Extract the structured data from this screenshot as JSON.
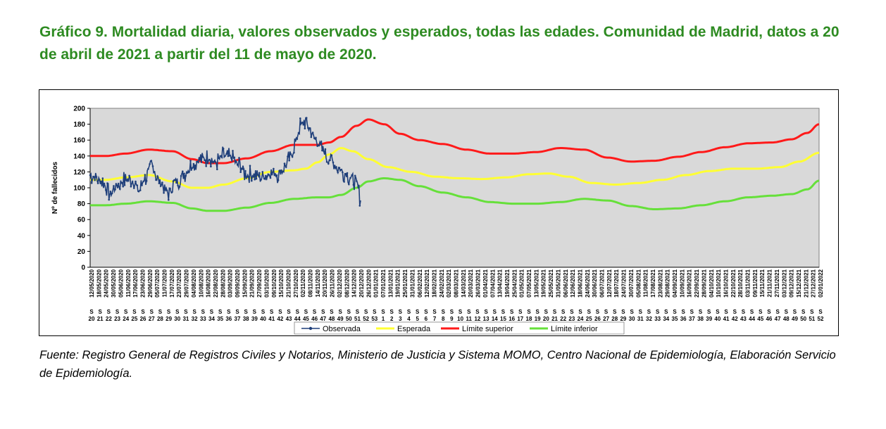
{
  "title": "Gráfico 9. Mortalidad diaria, valores observados y esperados, todas las edades. Comunidad de Madrid, datos a 20 de abril de 2021 a partir del 11 de mayo de 2020.",
  "source": "Fuente: Registro General de Registros Civiles y Notarios, Ministerio de Justicia y Sistema MOMO, Centro Nacional de Epidemiología, Elaboración Servicio de Epidemiología.",
  "colors": {
    "observada": "#1f3f7a",
    "esperada": "#ffff33",
    "limite_superior": "#ff1a1a",
    "limite_inferior": "#66e03a",
    "plot_bg": "#d9d9d9"
  },
  "chart_data": {
    "type": "line",
    "title": "",
    "ylabel": "Nº de fallecidos",
    "xlabel": "",
    "ylim": [
      0,
      200
    ],
    "yticks": [
      0,
      20,
      40,
      60,
      80,
      100,
      120,
      140,
      160,
      180,
      200
    ],
    "x_start": "11/05/2020",
    "total_days": 600,
    "observed_days": 345,
    "date_labels": [
      "12/05/2020",
      "18/05/2020",
      "24/05/2020",
      "30/05/2020",
      "05/06/2020",
      "11/06/2020",
      "17/06/2020",
      "23/06/2020",
      "29/06/2020",
      "05/07/2020",
      "11/07/2020",
      "17/07/2020",
      "23/07/2020",
      "29/07/2020",
      "04/08/2020",
      "10/08/2020",
      "16/08/2020",
      "22/08/2020",
      "28/08/2020",
      "03/09/2020",
      "09/09/2020",
      "15/09/2020",
      "21/09/2020",
      "27/09/2020",
      "03/10/2020",
      "09/10/2020",
      "15/10/2020",
      "21/10/2020",
      "27/10/2020",
      "02/11/2020",
      "08/11/2020",
      "14/11/2020",
      "20/11/2020",
      "26/11/2020",
      "02/12/2020",
      "08/12/2020",
      "14/12/2020",
      "20/12/2020",
      "26/12/2020",
      "01/01/2021",
      "07/01/2021",
      "13/01/2021",
      "19/01/2021",
      "25/01/2021",
      "31/01/2021",
      "06/02/2021",
      "12/02/2021",
      "18/02/2021",
      "24/02/2021",
      "02/03/2021",
      "08/03/2021",
      "14/03/2021",
      "20/03/2021",
      "26/03/2021",
      "01/04/2021",
      "07/04/2021",
      "13/04/2021",
      "19/04/2021",
      "25/04/2021",
      "01/05/2021",
      "07/05/2021",
      "13/05/2021",
      "19/05/2021",
      "25/05/2021",
      "31/05/2021",
      "06/06/2021",
      "12/06/2021",
      "18/06/2021",
      "24/06/2021",
      "30/06/2021",
      "06/07/2021",
      "12/07/2021",
      "18/07/2021",
      "24/07/2021",
      "30/07/2021",
      "05/08/2021",
      "11/08/2021",
      "17/08/2021",
      "23/08/2021",
      "29/08/2021",
      "04/09/2021",
      "10/09/2021",
      "16/09/2021",
      "22/09/2021",
      "28/09/2021",
      "04/10/2021",
      "10/10/2021",
      "16/10/2021",
      "22/10/2021",
      "28/10/2021",
      "03/11/2021",
      "09/11/2021",
      "15/11/2021",
      "21/11/2021",
      "27/11/2021",
      "03/12/2021",
      "09/12/2021",
      "15/12/2021",
      "21/12/2021",
      "27/12/2021",
      "02/01/2022"
    ],
    "week_prefix": "S",
    "week_labels": [
      "20",
      "21",
      "22",
      "23",
      "24",
      "25",
      "26",
      "27",
      "28",
      "29",
      "30",
      "31",
      "32",
      "33",
      "34",
      "35",
      "36",
      "37",
      "38",
      "39",
      "40",
      "41",
      "42",
      "43",
      "44",
      "45",
      "46",
      "47",
      "48",
      "49",
      "50",
      "51",
      "52",
      "53",
      "1",
      "2",
      "3",
      "4",
      "5",
      "6",
      "7",
      "8",
      "9",
      "10",
      "11",
      "12",
      "13",
      "14",
      "15",
      "16",
      "17",
      "18",
      "19",
      "20",
      "21",
      "22",
      "23",
      "24",
      "25",
      "26",
      "27",
      "28",
      "29",
      "30",
      "31",
      "32",
      "33",
      "34",
      "35",
      "36",
      "37",
      "38",
      "39",
      "40",
      "41",
      "42",
      "43",
      "44",
      "45",
      "46",
      "47",
      "48",
      "49",
      "50",
      "51",
      "52"
    ],
    "series": [
      {
        "name": "Observada",
        "key": "observada",
        "base": [
          [
            0,
            116
          ],
          [
            15,
            108
          ],
          [
            25,
            92
          ],
          [
            35,
            104
          ],
          [
            45,
            110
          ],
          [
            55,
            108
          ],
          [
            62,
            96
          ],
          [
            70,
            112
          ],
          [
            78,
            128
          ],
          [
            88,
            108
          ],
          [
            100,
            94
          ],
          [
            110,
            108
          ],
          [
            120,
            118
          ],
          [
            130,
            128
          ],
          [
            140,
            136
          ],
          [
            150,
            138
          ],
          [
            160,
            132
          ],
          [
            170,
            140
          ],
          [
            180,
            138
          ],
          [
            190,
            128
          ],
          [
            200,
            116
          ],
          [
            210,
            116
          ],
          [
            220,
            114
          ],
          [
            230,
            118
          ],
          [
            240,
            118
          ],
          [
            250,
            128
          ],
          [
            256,
            140
          ],
          [
            262,
            158
          ],
          [
            268,
            178
          ],
          [
            274,
            184
          ],
          [
            280,
            174
          ],
          [
            288,
            160
          ],
          [
            296,
            148
          ],
          [
            305,
            136
          ],
          [
            315,
            126
          ],
          [
            325,
            118
          ],
          [
            335,
            112
          ],
          [
            340,
            106
          ],
          [
            345,
            88
          ]
        ],
        "amplitude": 8
      },
      {
        "name": "Esperada",
        "key": "esperada",
        "points": [
          [
            0,
            110
          ],
          [
            20,
            110
          ],
          [
            45,
            113
          ],
          [
            75,
            116
          ],
          [
            105,
            108
          ],
          [
            130,
            100
          ],
          [
            150,
            100
          ],
          [
            170,
            104
          ],
          [
            200,
            112
          ],
          [
            230,
            120
          ],
          [
            260,
            122
          ],
          [
            275,
            124
          ],
          [
            290,
            132
          ],
          [
            305,
            142
          ],
          [
            320,
            150
          ],
          [
            335,
            146
          ],
          [
            355,
            136
          ],
          [
            380,
            126
          ],
          [
            410,
            120
          ],
          [
            440,
            114
          ],
          [
            470,
            112
          ],
          [
            500,
            111
          ],
          [
            530,
            113
          ],
          [
            560,
            117
          ],
          [
            585,
            118
          ],
          [
            610,
            114
          ],
          [
            640,
            106
          ],
          [
            670,
            104
          ],
          [
            700,
            106
          ],
          [
            730,
            110
          ],
          [
            760,
            116
          ],
          [
            790,
            121
          ],
          [
            820,
            124
          ],
          [
            850,
            124
          ],
          [
            880,
            126
          ],
          [
            905,
            133
          ],
          [
            930,
            144
          ]
        ]
      },
      {
        "name": "Límite superior",
        "key": "limite_superior",
        "points": [
          [
            0,
            140
          ],
          [
            20,
            140
          ],
          [
            45,
            143
          ],
          [
            75,
            148
          ],
          [
            105,
            146
          ],
          [
            130,
            136
          ],
          [
            150,
            131
          ],
          [
            170,
            131
          ],
          [
            200,
            137
          ],
          [
            230,
            146
          ],
          [
            260,
            154
          ],
          [
            290,
            154
          ],
          [
            305,
            157
          ],
          [
            320,
            164
          ],
          [
            340,
            178
          ],
          [
            355,
            186
          ],
          [
            375,
            180
          ],
          [
            395,
            168
          ],
          [
            420,
            160
          ],
          [
            450,
            155
          ],
          [
            480,
            148
          ],
          [
            510,
            143
          ],
          [
            540,
            143
          ],
          [
            570,
            145
          ],
          [
            600,
            150
          ],
          [
            630,
            148
          ],
          [
            660,
            138
          ],
          [
            690,
            133
          ],
          [
            720,
            134
          ],
          [
            750,
            139
          ],
          [
            780,
            145
          ],
          [
            810,
            151
          ],
          [
            840,
            156
          ],
          [
            870,
            157
          ],
          [
            895,
            161
          ],
          [
            915,
            169
          ],
          [
            930,
            180
          ]
        ]
      },
      {
        "name": "Límite inferior",
        "key": "limite_inferior",
        "points": [
          [
            0,
            78
          ],
          [
            20,
            78
          ],
          [
            45,
            80
          ],
          [
            75,
            83
          ],
          [
            105,
            81
          ],
          [
            130,
            74
          ],
          [
            150,
            71
          ],
          [
            170,
            71
          ],
          [
            200,
            75
          ],
          [
            230,
            81
          ],
          [
            260,
            86
          ],
          [
            290,
            88
          ],
          [
            305,
            88
          ],
          [
            320,
            91
          ],
          [
            340,
            100
          ],
          [
            355,
            108
          ],
          [
            375,
            112
          ],
          [
            395,
            110
          ],
          [
            420,
            102
          ],
          [
            450,
            94
          ],
          [
            480,
            88
          ],
          [
            510,
            82
          ],
          [
            540,
            80
          ],
          [
            570,
            80
          ],
          [
            600,
            82
          ],
          [
            630,
            86
          ],
          [
            660,
            84
          ],
          [
            690,
            77
          ],
          [
            720,
            73
          ],
          [
            750,
            74
          ],
          [
            780,
            78
          ],
          [
            810,
            83
          ],
          [
            840,
            88
          ],
          [
            870,
            90
          ],
          [
            895,
            92
          ],
          [
            915,
            98
          ],
          [
            930,
            109
          ]
        ]
      }
    ],
    "legend_position": "bottom"
  }
}
